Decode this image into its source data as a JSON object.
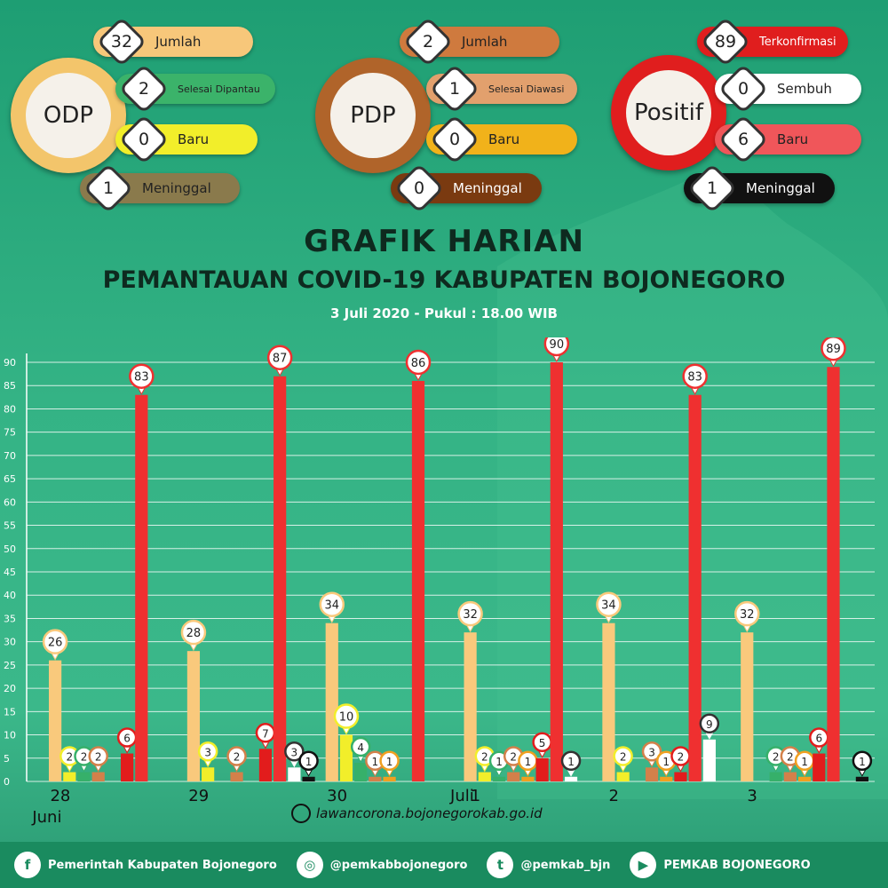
{
  "stats": {
    "odp": {
      "label": "ODP",
      "ring_color": "#f3c56b",
      "items": [
        {
          "value": "32",
          "label": "Jumlah",
          "color": "#f7c77a"
        },
        {
          "value": "2",
          "label": "Selesai Dipantau",
          "color": "#3bb36a"
        },
        {
          "value": "0",
          "label": "Baru",
          "color": "#f2ee2a"
        },
        {
          "value": "1",
          "label": "Meninggal",
          "color": "#8a7a4c"
        }
      ]
    },
    "pdp": {
      "label": "PDP",
      "ring_color": "#b0642a",
      "items": [
        {
          "value": "2",
          "label": "Jumlah",
          "color": "#cf7a3e"
        },
        {
          "value": "1",
          "label": "Selesai Diawasi",
          "color": "#e2a06d"
        },
        {
          "value": "0",
          "label": "Baru",
          "color": "#f1b21a"
        },
        {
          "value": "0",
          "label": "Meninggal",
          "color": "#7a3a10"
        }
      ]
    },
    "positif": {
      "label": "Positif",
      "ring_color": "#e01e1e",
      "items": [
        {
          "value": "89",
          "label": "Terkonfirmasi",
          "color": "#e01e1e"
        },
        {
          "value": "0",
          "label": "Sembuh",
          "color": "#ffffff"
        },
        {
          "value": "6",
          "label": "Baru",
          "color": "#f0565a"
        },
        {
          "value": "1",
          "label": "Meninggal",
          "color": "#111111"
        }
      ]
    }
  },
  "chart_title": "GRAFIK HARIAN",
  "chart_subtitle": "PEMANTAUAN COVID-19 KABUPATEN BOJONEGORO",
  "chart_date": "3 Juli 2020 - Pukul : 18.00 WIB",
  "website": "lawancorona.bojonegorokab.go.id",
  "footer": [
    {
      "icon": "facebook-icon",
      "glyph": "f",
      "text": "Pemerintah Kabupaten Bojonegoro"
    },
    {
      "icon": "instagram-icon",
      "glyph": "◎",
      "text": "@pemkabbojonegoro"
    },
    {
      "icon": "twitter-icon",
      "glyph": "t",
      "text": "@pemkab_bjn"
    },
    {
      "icon": "youtube-icon",
      "glyph": "▶",
      "text": "PEMKAB BOJONEGORO"
    }
  ],
  "chart_data": {
    "type": "bar",
    "categories": [
      "28",
      "29",
      "30",
      "1",
      "2",
      "3"
    ],
    "month_labels": [
      {
        "category": "28",
        "text": "Juni"
      },
      {
        "category": "1",
        "text": "Juli"
      }
    ],
    "ylim": [
      0,
      90
    ],
    "yticks": [
      0,
      5,
      10,
      15,
      20,
      25,
      30,
      35,
      40,
      45,
      50,
      55,
      60,
      65,
      70,
      75,
      80,
      85,
      90
    ],
    "grid": true,
    "series": [
      {
        "color": "#f9c97c",
        "values": [
          26,
          28,
          34,
          32,
          34,
          32
        ]
      },
      {
        "color": "#f2ee2a",
        "values": [
          2,
          3,
          10,
          2,
          2,
          0
        ]
      },
      {
        "color": "#36b06a",
        "values": [
          2,
          0,
          4,
          1,
          0,
          2
        ]
      },
      {
        "color": "#d3804a",
        "values": [
          2,
          2,
          1,
          2,
          3,
          2
        ]
      },
      {
        "color": "#f0a020",
        "values": [
          0,
          0,
          1,
          1,
          1,
          1
        ]
      },
      {
        "color": "#e21c1c",
        "values": [
          6,
          7,
          0,
          5,
          2,
          6
        ]
      },
      {
        "color": "#ef3030",
        "values": [
          83,
          87,
          86,
          90,
          83,
          89
        ]
      },
      {
        "color": "#ffffff",
        "values": [
          0,
          3,
          0,
          1,
          9,
          0
        ]
      },
      {
        "color": "#111111",
        "values": [
          0,
          1,
          0,
          0,
          0,
          1
        ]
      }
    ]
  }
}
